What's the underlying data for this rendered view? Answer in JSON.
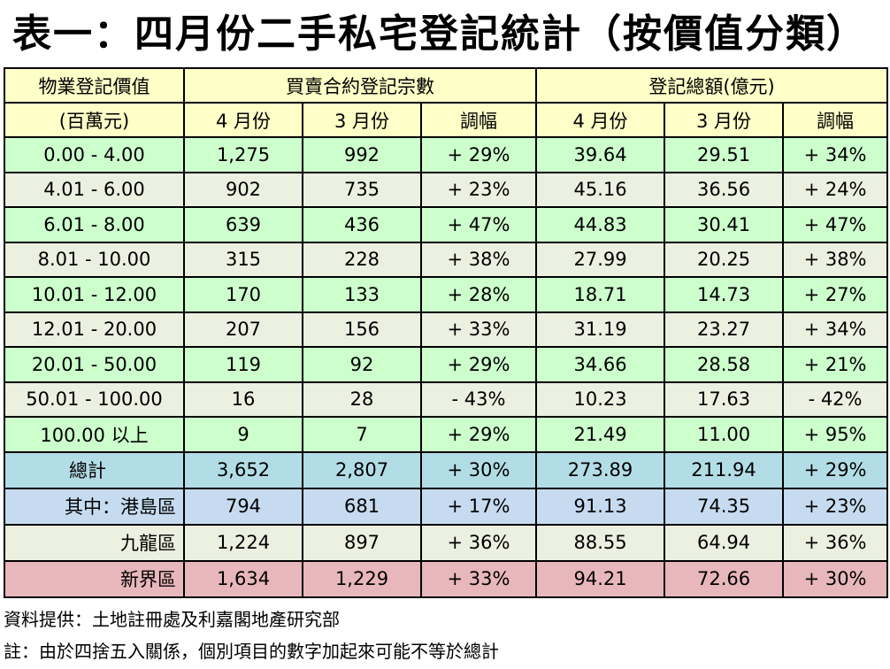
{
  "title": "表一：四月份二手私宅登記統計（按價值分類）",
  "header": {
    "col0_line1": "物業登記價值",
    "col0_line2": "(百萬元)",
    "group1": "買賣合約登記宗數",
    "group2": "登記總額(億元)",
    "sub": [
      "4 月份",
      "3 月份",
      "調幅",
      "4 月份",
      "3 月份",
      "調幅"
    ]
  },
  "rows": [
    [
      "0.00 - 4.00",
      "1,275",
      "992",
      "+ 29%",
      "39.64",
      "29.51",
      "+ 34%"
    ],
    [
      "4.01 - 6.00",
      "902",
      "735",
      "+ 23%",
      "45.16",
      "36.56",
      "+ 24%"
    ],
    [
      "6.01 - 8.00",
      "639",
      "436",
      "+ 47%",
      "44.83",
      "30.41",
      "+ 47%"
    ],
    [
      "8.01 - 10.00",
      "315",
      "228",
      "+ 38%",
      "27.99",
      "20.25",
      "+ 38%"
    ],
    [
      "10.01 - 12.00",
      "170",
      "133",
      "+ 28%",
      "18.71",
      "14.73",
      "+ 27%"
    ],
    [
      "12.01 - 20.00",
      "207",
      "156",
      "+ 33%",
      "31.19",
      "23.27",
      "+ 34%"
    ],
    [
      "20.01 - 50.00",
      "119",
      "92",
      "+ 29%",
      "34.66",
      "28.58",
      "+ 21%"
    ],
    [
      "50.01 - 100.00",
      "16",
      "28",
      "- 43%",
      "10.23",
      "17.63",
      "- 42%"
    ],
    [
      "100.00  以上",
      "9",
      "7",
      "+ 29%",
      "21.49",
      "11.00",
      "+ 95%"
    ]
  ],
  "summary": [
    [
      "總計",
      "3,652",
      "2,807",
      "+ 30%",
      "273.89",
      "211.94",
      "+ 29%"
    ],
    [
      "其中：港島區",
      "794",
      "681",
      "+ 17%",
      "91.13",
      "74.35",
      "+ 23%"
    ],
    [
      "九龍區",
      "1,224",
      "897",
      "+ 36%",
      "88.55",
      "64.94",
      "+ 36%"
    ],
    [
      "新界區",
      "1,634",
      "1,229",
      "+ 33%",
      "94.21",
      "72.66",
      "+ 30%"
    ]
  ],
  "source": "資料提供：土地註冊處及利嘉閣地產研究部",
  "note": "註：由於四捨五入關係，個別項目的數字加起來可能不等於總計",
  "colors": {
    "header_bg": "#ffffc8",
    "row_green": "#ccffcc",
    "row_grey": "#ecf0e0",
    "total_bg": "#b3dde6",
    "hk_bg": "#c6dbf0",
    "kln_bg": "#ecf0e0",
    "nt_bg": "#e8b7bb"
  }
}
